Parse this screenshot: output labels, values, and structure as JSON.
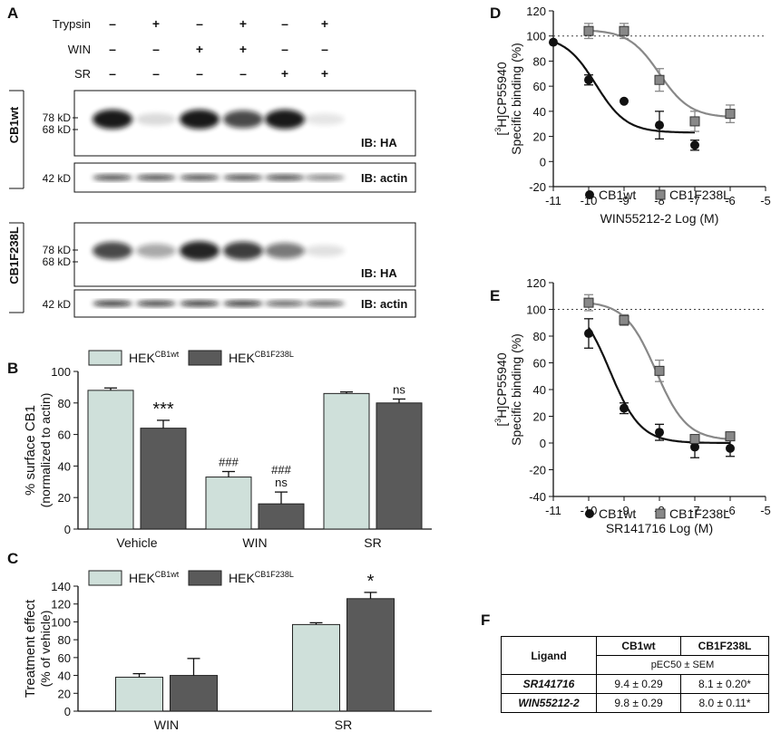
{
  "panels": {
    "A": "A",
    "B": "B",
    "C": "C",
    "D": "D",
    "E": "E",
    "F": "F"
  },
  "blot": {
    "treatments": [
      {
        "name": "Trypsin",
        "signs": [
          "–",
          "+",
          "–",
          "+",
          "–",
          "+"
        ]
      },
      {
        "name": "WIN",
        "signs": [
          "–",
          "–",
          "+",
          "+",
          "–",
          "–"
        ]
      },
      {
        "name": "SR",
        "signs": [
          "–",
          "–",
          "–",
          "–",
          "+",
          "+"
        ]
      }
    ],
    "groups": [
      {
        "label": "CB1wt",
        "ha_markers": [
          "78 kD",
          "68 kD"
        ],
        "actin_marker": "42 kD",
        "ha_label": "IB: HA",
        "actin_label": "IB: actin",
        "ha_intensity": [
          0.95,
          0.15,
          0.95,
          0.75,
          0.95,
          0.1
        ],
        "actin_intensity": [
          0.8,
          0.8,
          0.8,
          0.8,
          0.8,
          0.55
        ]
      },
      {
        "label": "CB1F238L",
        "ha_markers": [
          "78 kD",
          "68 kD"
        ],
        "actin_marker": "42 kD",
        "ha_label": "IB: HA",
        "actin_label": "IB: actin",
        "ha_intensity": [
          0.75,
          0.35,
          0.9,
          0.8,
          0.55,
          0.12
        ],
        "actin_intensity": [
          0.9,
          0.85,
          0.9,
          0.9,
          0.7,
          0.7
        ]
      }
    ]
  },
  "chart_data": [
    {
      "id": "B",
      "type": "bar",
      "ylabel_lines": [
        "% surface CB1",
        "(normalized to actin)"
      ],
      "categories": [
        "Vehicle",
        "WIN",
        "SR"
      ],
      "ylim": [
        0,
        100
      ],
      "yticks": [
        0,
        20,
        40,
        60,
        80,
        100
      ],
      "legend_position": "top",
      "series": [
        {
          "name": "HEK",
          "sup": "CB1wt",
          "color": "#cfe0da",
          "values": [
            88,
            33,
            86
          ],
          "errors": [
            1.5,
            3.5,
            1
          ],
          "annotations": [
            "",
            "###",
            ""
          ]
        },
        {
          "name": "HEK",
          "sup": "CB1F238L",
          "color": "#5a5a5a",
          "values": [
            64,
            16,
            80
          ],
          "errors": [
            5,
            7.5,
            2.5
          ],
          "annotations": [
            "***",
            "###\nns",
            "ns"
          ]
        }
      ]
    },
    {
      "id": "C",
      "type": "bar",
      "ylabel_lines": [
        "Treatment effect",
        "(% of vehicle)"
      ],
      "categories": [
        "WIN",
        "SR"
      ],
      "ylim": [
        0,
        140
      ],
      "yticks": [
        0,
        20,
        40,
        60,
        80,
        100,
        120,
        140
      ],
      "legend_position": "top-left",
      "series": [
        {
          "name": "HEK",
          "sup": "CB1wt",
          "color": "#cfe0da",
          "values": [
            38,
            97
          ],
          "errors": [
            4,
            2
          ],
          "annotations": [
            "",
            ""
          ]
        },
        {
          "name": "HEK",
          "sup": "CB1F238L",
          "color": "#5a5a5a",
          "values": [
            40,
            126
          ],
          "errors": [
            19,
            7
          ],
          "annotations": [
            "",
            "*"
          ]
        }
      ]
    },
    {
      "id": "D",
      "type": "scatter",
      "ylabel_lines": [
        "[3H]CP55940",
        "Specific binding (%)"
      ],
      "xlabel": "WIN55212-2 Log (M)",
      "xlim": [
        -11,
        -5
      ],
      "xticks": [
        -11,
        -10,
        -9,
        -8,
        -7,
        -6,
        -5
      ],
      "ylim": [
        -20,
        120
      ],
      "yticks": [
        -20,
        0,
        20,
        40,
        60,
        80,
        100,
        120
      ],
      "reference_line": 100,
      "legend_position": "bottom",
      "series": [
        {
          "name": "CB1wt",
          "marker": "circle",
          "color": "#111111",
          "x": [
            -11,
            -10,
            -9,
            -8,
            -7
          ],
          "y": [
            95,
            65,
            48,
            29,
            13
          ],
          "err": [
            0,
            4,
            0,
            11,
            4
          ],
          "fit": {
            "top": 100,
            "bottom": 23,
            "logEC50": -9.8
          }
        },
        {
          "name": "CB1F238L",
          "marker": "square",
          "color": "#888888",
          "x": [
            -10,
            -9,
            -8,
            -7,
            -6
          ],
          "y": [
            104,
            104,
            65,
            32,
            38
          ],
          "err": [
            6,
            6,
            9,
            8,
            7
          ],
          "fit": {
            "top": 105,
            "bottom": 35,
            "logEC50": -8.0
          }
        }
      ]
    },
    {
      "id": "E",
      "type": "scatter",
      "ylabel_lines": [
        "[3H]CP55940",
        "Specific binding (%)"
      ],
      "xlabel": "SR141716 Log (M)",
      "xlim": [
        -11,
        -5
      ],
      "xticks": [
        -11,
        -10,
        -9,
        -8,
        -7,
        -6,
        -5
      ],
      "ylim": [
        -40,
        120
      ],
      "yticks": [
        -40,
        -20,
        0,
        20,
        40,
        60,
        80,
        100,
        120
      ],
      "reference_line": 100,
      "legend_position": "bottom",
      "series": [
        {
          "name": "CB1wt",
          "marker": "circle",
          "color": "#111111",
          "x": [
            -10,
            -9,
            -8,
            -7,
            -6
          ],
          "y": [
            82,
            26,
            8,
            -3,
            -4
          ],
          "err": [
            11,
            4,
            6,
            8,
            6
          ],
          "fit": {
            "top": 108,
            "bottom": 0,
            "logEC50": -9.4
          }
        },
        {
          "name": "CB1F238L",
          "marker": "square",
          "color": "#888888",
          "x": [
            -10,
            -9,
            -8,
            -7,
            -6
          ],
          "y": [
            105,
            92,
            54,
            3,
            5
          ],
          "err": [
            6,
            4,
            8,
            0,
            0
          ],
          "fit": {
            "top": 106,
            "bottom": 2,
            "logEC50": -8.1
          }
        }
      ]
    },
    {
      "id": "F",
      "type": "table",
      "header": [
        "Ligand",
        "CB1wt",
        "CB1F238L"
      ],
      "subheader": "pEC50 ± SEM",
      "rows": [
        [
          "SR141716",
          "9.4 ± 0.29",
          "8.1 ± 0.20*"
        ],
        [
          "WIN55212-2",
          "9.8 ± 0.29",
          "8.0 ± 0.11*"
        ]
      ]
    }
  ]
}
